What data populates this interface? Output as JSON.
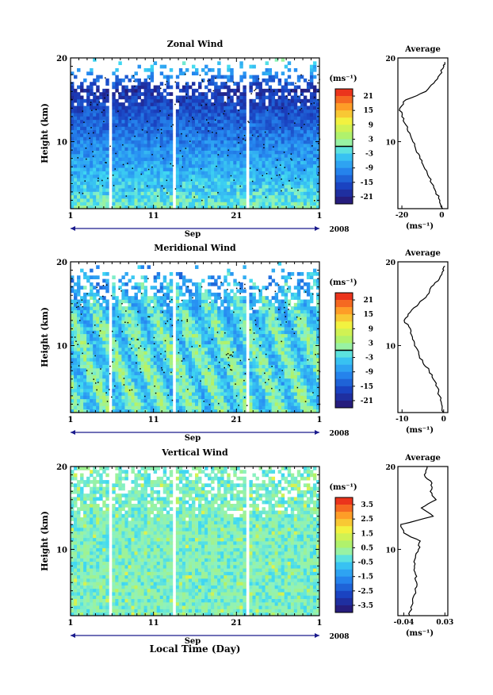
{
  "figure": {
    "xlabel": "Local Time (Day)",
    "month_label": "Sep",
    "year_label": "2008",
    "unit_label": "(ms⁻¹)",
    "height_label": "Height (km)",
    "average_title": "Average"
  },
  "chart_data": [
    {
      "type": "heatmap",
      "title": "Zonal Wind",
      "xlabel": "Sep",
      "ylabel": "Height (km)",
      "x_ticks": [
        "1",
        "11",
        "21",
        "1"
      ],
      "y_ticks": [
        "20",
        "10"
      ],
      "xlim_day": [
        1,
        31
      ],
      "ylim_km": [
        2,
        20
      ],
      "colorbar_ticks": [
        "21",
        "15",
        "9",
        "3",
        "-3",
        "-9",
        "-15",
        "-21"
      ],
      "colorbar_range": [
        -24,
        24
      ],
      "contour_level": 0,
      "profile": {
        "title": "Average",
        "xlabel": "(ms⁻¹)",
        "x_ticks": [
          "-20",
          "0"
        ],
        "xlim": [
          -22,
          3
        ],
        "height_km": [
          2,
          3,
          4,
          5,
          6,
          7,
          8,
          9,
          10,
          11,
          12,
          13,
          14,
          15,
          16,
          17,
          18,
          19,
          19.5
        ],
        "values": [
          0.5,
          -1,
          -3,
          -5,
          -7,
          -9,
          -11,
          -13,
          -14.5,
          -16,
          -18,
          -20,
          -21,
          -18,
          -8,
          -4,
          -1,
          1,
          1.5
        ]
      }
    },
    {
      "type": "heatmap",
      "title": "Meridional Wind",
      "xlabel": "Sep",
      "ylabel": "Height (km)",
      "x_ticks": [
        "1",
        "11",
        "21",
        "1"
      ],
      "y_ticks": [
        "20",
        "10"
      ],
      "xlim_day": [
        1,
        31
      ],
      "ylim_km": [
        2,
        20
      ],
      "colorbar_ticks": [
        "21",
        "15",
        "9",
        "3",
        "-3",
        "-9",
        "-15",
        "-21"
      ],
      "colorbar_range": [
        -24,
        24
      ],
      "contour_level": 0,
      "profile": {
        "title": "Average",
        "xlabel": "(ms⁻¹)",
        "x_ticks": [
          "-10",
          "0"
        ],
        "xlim": [
          -11,
          1
        ],
        "height_km": [
          2,
          3,
          4,
          5,
          6,
          7,
          8,
          9,
          10,
          11,
          12,
          13,
          14,
          15,
          16,
          17,
          18,
          19,
          19.5
        ],
        "values": [
          0,
          -0.5,
          -1,
          -1.5,
          -2.5,
          -3.5,
          -5,
          -6,
          -7,
          -7.5,
          -8,
          -9.5,
          -8,
          -6,
          -4,
          -3,
          -1,
          0,
          0.3
        ]
      }
    },
    {
      "type": "heatmap",
      "title": "Vertical Wind",
      "xlabel": "Sep",
      "ylabel": "Height (km)",
      "x_ticks": [
        "1",
        "11",
        "21",
        "1"
      ],
      "y_ticks": [
        "20",
        "10"
      ],
      "xlim_day": [
        1,
        31
      ],
      "ylim_km": [
        2,
        20
      ],
      "colorbar_ticks": [
        "3.5",
        "2.5",
        "1.5",
        "0.5",
        "-0.5",
        "-1.5",
        "-2.5",
        "-3.5"
      ],
      "colorbar_range": [
        -4,
        4
      ],
      "profile": {
        "title": "Average",
        "xlabel": "(ms⁻¹)",
        "x_ticks": [
          "-0.04",
          "0.03"
        ],
        "xlim": [
          -0.05,
          0.035
        ],
        "height_km": [
          2,
          3,
          4,
          5,
          6,
          7,
          8,
          9,
          10,
          11,
          12,
          13,
          14,
          15,
          16,
          17,
          18,
          19,
          20
        ],
        "values": [
          -0.03,
          -0.028,
          -0.025,
          -0.02,
          -0.018,
          -0.02,
          -0.022,
          -0.02,
          -0.015,
          -0.012,
          -0.04,
          -0.045,
          0.01,
          -0.01,
          0.015,
          0.005,
          0.008,
          -0.005,
          0.0
        ]
      }
    }
  ]
}
